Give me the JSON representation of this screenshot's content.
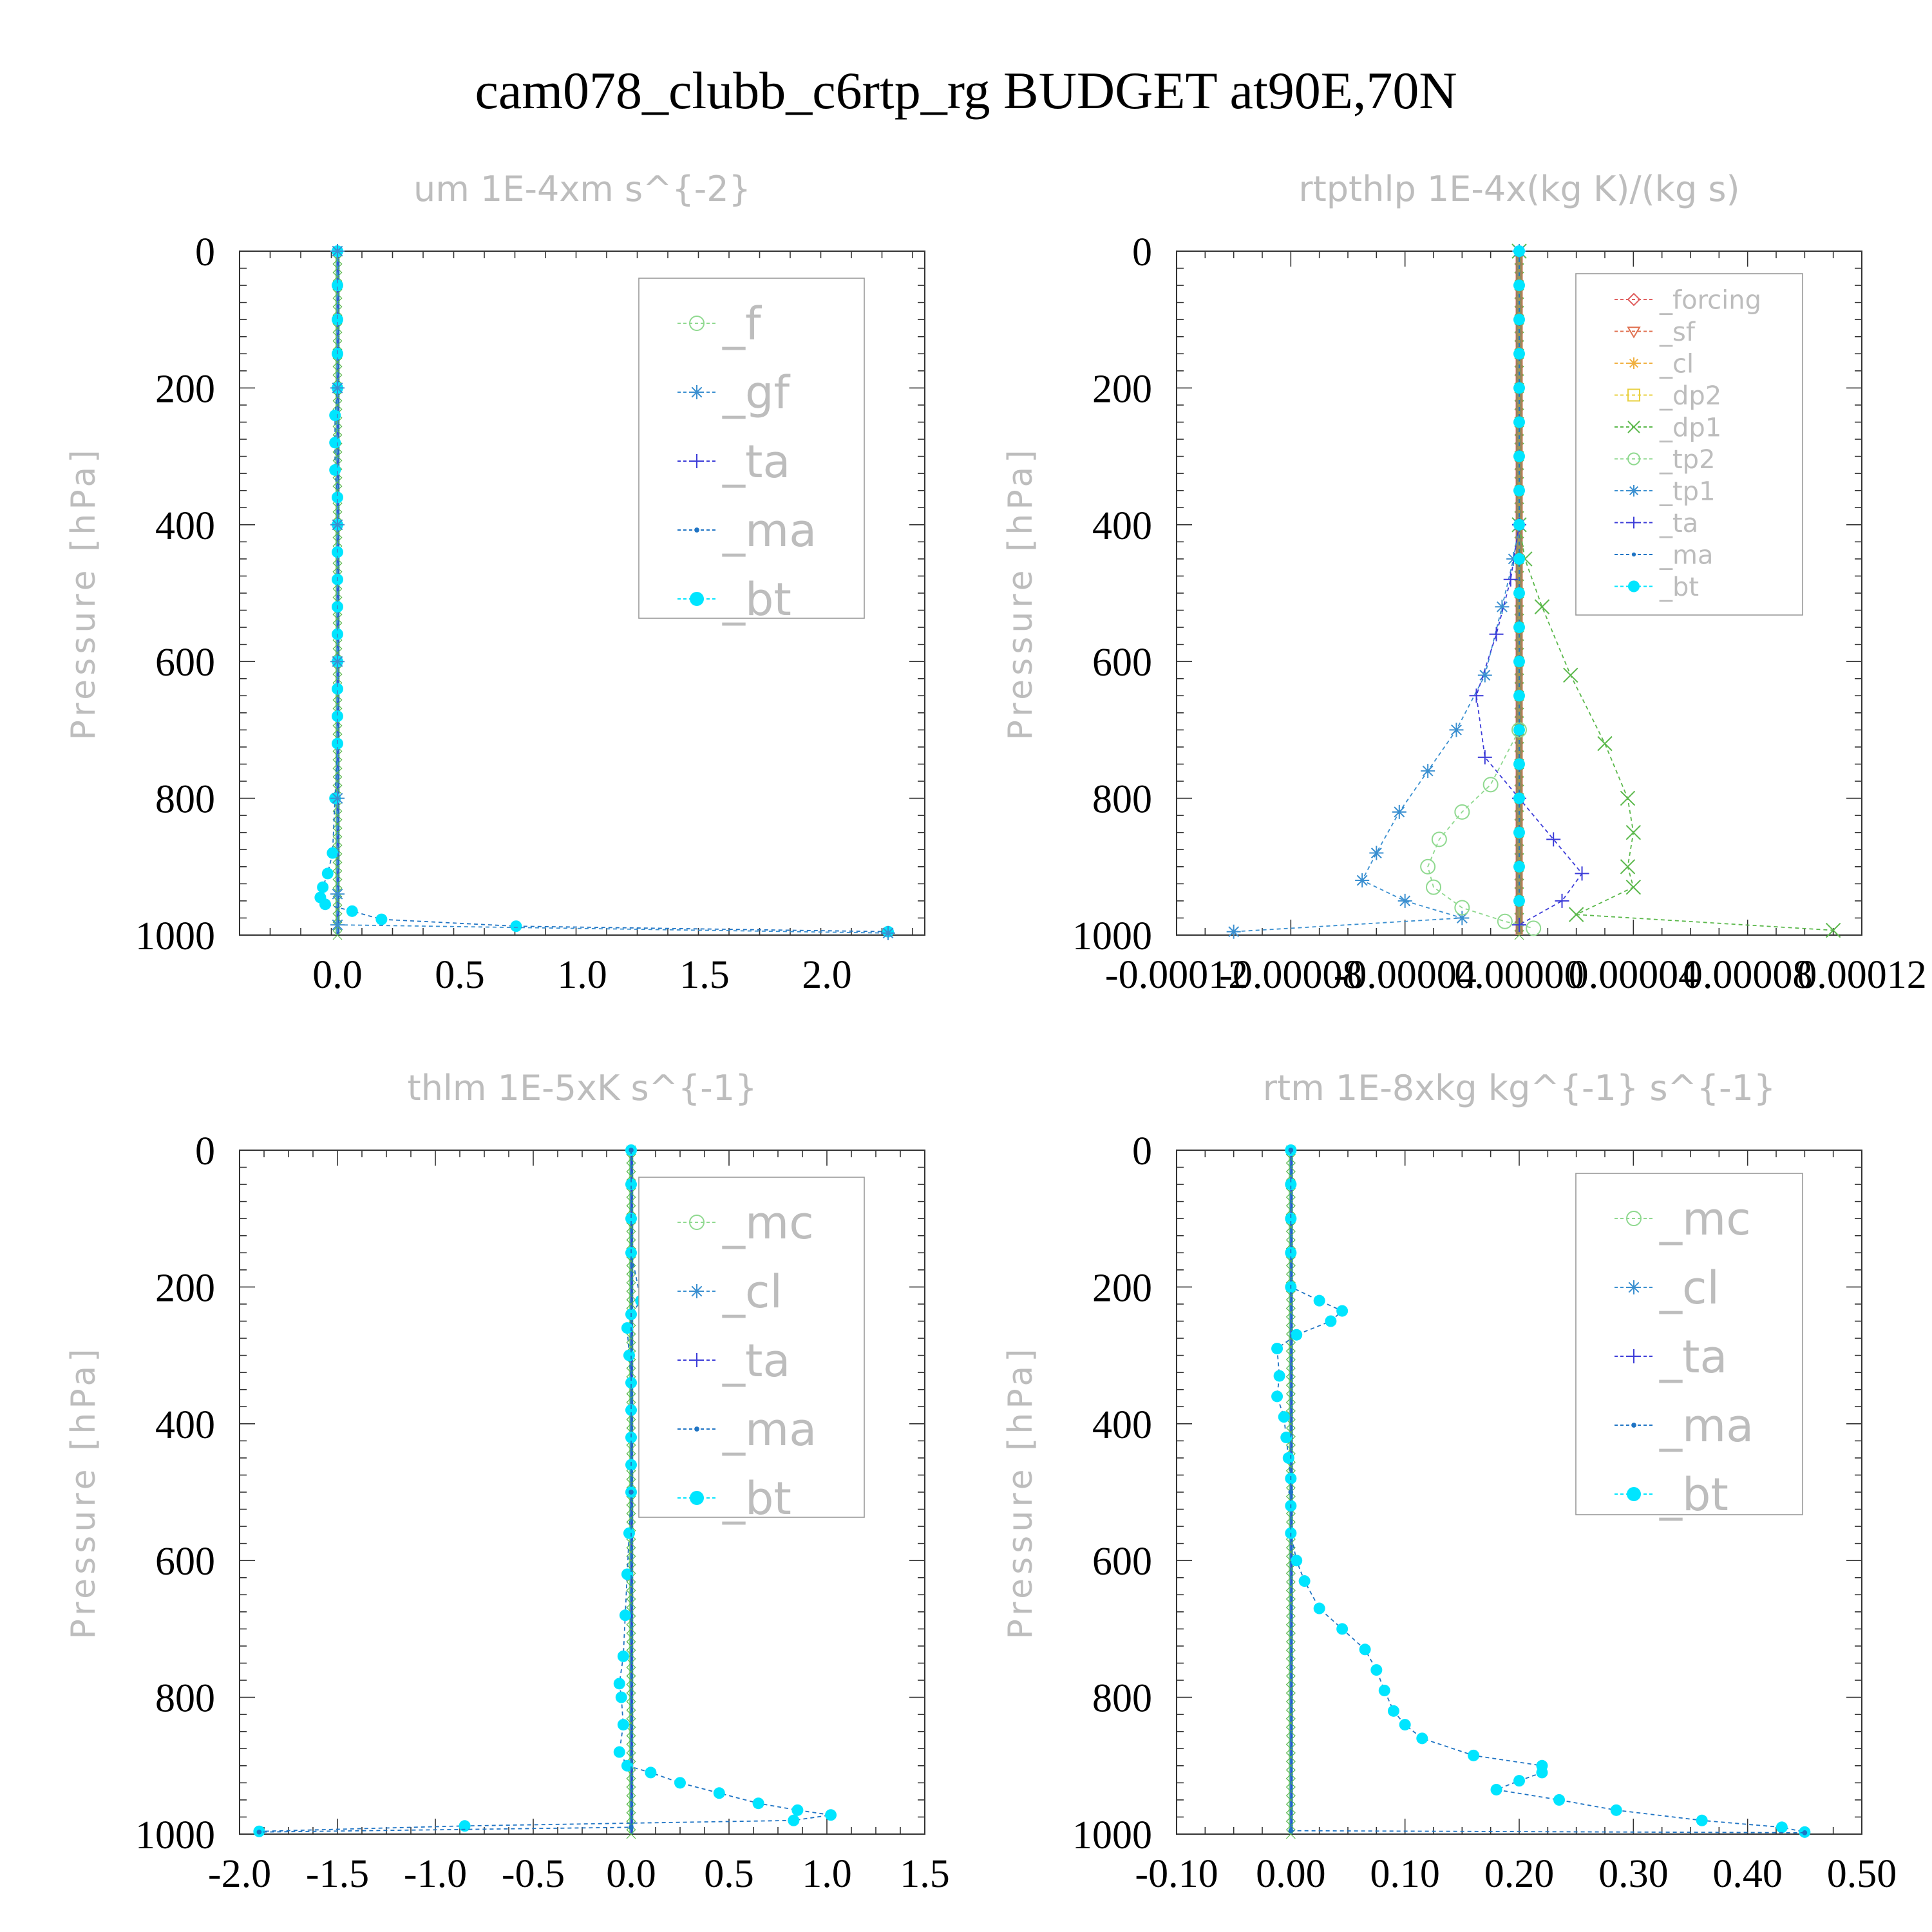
{
  "title": "cam078_clubb_c6rtp_rg  BUDGET at90E,70N",
  "ylabel": "Pressure [hPa]",
  "chart_data": [
    {
      "type": "line",
      "title": "um  1E-4xm s^{-2}",
      "ylabel": "Pressure [hPa]",
      "xlim": [
        -0.4,
        2.4
      ],
      "ylim": [
        1000,
        0
      ],
      "xticks": [
        "0.0",
        "0.5",
        "1.0",
        "1.5",
        "2.0"
      ],
      "xtick_values": [
        0,
        0.5,
        1.0,
        1.5,
        2.0
      ],
      "yticks": [
        "0",
        "200",
        "400",
        "600",
        "800",
        "1000"
      ],
      "legend": [
        "_f",
        "_gf",
        "_ta",
        "_ma",
        "_bt"
      ],
      "legend_colors": [
        "#8fd98f",
        "#3a8fd0",
        "#3b3bd8",
        "#1f74c4",
        "#00e5ff"
      ],
      "series": [
        {
          "name": "_bt",
          "marker": "dot",
          "x": [
            0,
            0,
            0,
            0,
            0,
            -0.01,
            -0.01,
            -0.01,
            0,
            0,
            0,
            0,
            0,
            0,
            0,
            0,
            0,
            0,
            -0.01,
            -0.02,
            -0.04,
            -0.06,
            -0.07,
            -0.05,
            0.06,
            0.18,
            0.73,
            2.25
          ],
          "y": [
            0,
            50,
            100,
            150,
            200,
            240,
            280,
            320,
            360,
            400,
            440,
            480,
            520,
            560,
            600,
            640,
            680,
            720,
            800,
            880,
            910,
            930,
            945,
            955,
            965,
            977,
            987,
            995
          ]
        },
        {
          "name": "_gf",
          "marker": "star",
          "x": [
            0,
            0,
            0,
            0,
            0,
            0.0,
            0.0,
            2.25
          ],
          "y": [
            0,
            200,
            400,
            600,
            800,
            940,
            985,
            997
          ]
        }
      ]
    },
    {
      "type": "line",
      "title": "rtpthlp  1E-4x(kg K)/(kg s)",
      "ylabel": "Pressure [hPa]",
      "xlim": [
        -0.00012,
        0.00012
      ],
      "ylim": [
        1000,
        0
      ],
      "xticks": [
        "-0.00012",
        "-0.00008",
        "-0.00004",
        "0.00000",
        "0.00004",
        "0.00008",
        "0.00012"
      ],
      "xtick_values": [
        -0.00012,
        -8e-05,
        -4e-05,
        0,
        4e-05,
        8e-05,
        0.00012
      ],
      "yticks": [
        "0",
        "200",
        "400",
        "600",
        "800",
        "1000"
      ],
      "legend": [
        "_forcing",
        "_sf",
        "_cl",
        "_dp2",
        "_dp1",
        "_tp2",
        "_tp1",
        "_ta",
        "_ma",
        "_bt"
      ],
      "legend_colors": [
        "#e06060",
        "#e07050",
        "#f0b040",
        "#e8d040",
        "#5ab84a",
        "#8fd98f",
        "#3a8fd0",
        "#3b3bd8",
        "#1f74c4",
        "#00e5ff"
      ],
      "series": [
        {
          "name": "_dp1",
          "marker": "x",
          "x": [
            0,
            0,
            2e-06,
            8e-06,
            1.8e-05,
            3e-05,
            3.8e-05,
            4e-05,
            3.8e-05,
            4e-05,
            2e-05,
            0.00011
          ],
          "y": [
            0,
            400,
            450,
            520,
            620,
            720,
            800,
            850,
            900,
            930,
            970,
            993
          ]
        },
        {
          "name": "_tp1",
          "marker": "star",
          "x": [
            0,
            0,
            -2e-06,
            -6e-06,
            -1.2e-05,
            -2.2e-05,
            -3.2e-05,
            -4.2e-05,
            -5e-05,
            -5.5e-05,
            -4e-05,
            -2e-05,
            -0.0001
          ],
          "y": [
            0,
            400,
            450,
            520,
            620,
            700,
            760,
            820,
            880,
            920,
            950,
            975,
            995
          ]
        },
        {
          "name": "_tp2",
          "marker": "circle",
          "x": [
            0,
            -1e-05,
            -2e-05,
            -2.8e-05,
            -3.2e-05,
            -3e-05,
            -2e-05,
            -5e-06,
            5e-06
          ],
          "y": [
            700,
            780,
            820,
            860,
            900,
            930,
            960,
            980,
            990
          ]
        },
        {
          "name": "_ta",
          "marker": "plus",
          "x": [
            0,
            -3e-06,
            -8e-06,
            -1.5e-05,
            -1.2e-05,
            0,
            1.2e-05,
            2.2e-05,
            1.5e-05,
            0
          ],
          "y": [
            400,
            480,
            560,
            650,
            740,
            800,
            860,
            910,
            950,
            985
          ]
        },
        {
          "name": "_bt",
          "marker": "dot",
          "x": [
            0,
            0,
            0,
            0,
            0,
            0,
            0,
            0,
            0,
            0,
            0,
            0,
            0,
            0,
            0,
            0,
            0,
            0,
            0,
            0
          ],
          "y": [
            0,
            50,
            100,
            150,
            200,
            250,
            300,
            350,
            400,
            450,
            500,
            550,
            600,
            650,
            700,
            750,
            800,
            850,
            900,
            950
          ]
        }
      ]
    },
    {
      "type": "line",
      "title": "thlm  1E-5xK s^{-1}",
      "ylabel": "Pressure [hPa]",
      "xlim": [
        -2.0,
        1.5
      ],
      "ylim": [
        1000,
        0
      ],
      "xticks": [
        "-2.0",
        "-1.5",
        "-1.0",
        "-0.5",
        "0.0",
        "0.5",
        "1.0",
        "1.5"
      ],
      "xtick_values": [
        -2.0,
        -1.5,
        -1.0,
        -0.5,
        0.0,
        0.5,
        1.0,
        1.5
      ],
      "yticks": [
        "0",
        "200",
        "400",
        "600",
        "800",
        "1000"
      ],
      "legend": [
        "_mc",
        "_cl",
        "_ta",
        "_ma",
        "_bt"
      ],
      "legend_colors": [
        "#8fd98f",
        "#3a8fd0",
        "#3b3bd8",
        "#1f74c4",
        "#00e5ff"
      ],
      "series": [
        {
          "name": "_bt",
          "marker": "dot",
          "x": [
            0,
            0,
            0,
            0,
            0.05,
            0,
            -0.02,
            -0.01,
            0,
            0,
            0,
            0,
            0,
            -0.01,
            -0.02,
            -0.03,
            -0.04,
            -0.06,
            -0.05,
            -0.04,
            -0.06,
            -0.02,
            0.1,
            0.25,
            0.45,
            0.65,
            0.85,
            1.02,
            0.83,
            -0.85,
            -1.9
          ],
          "y": [
            0,
            50,
            100,
            150,
            220,
            240,
            260,
            300,
            340,
            380,
            420,
            460,
            500,
            560,
            620,
            680,
            740,
            780,
            800,
            840,
            880,
            900,
            910,
            925,
            940,
            955,
            965,
            972,
            980,
            988,
            996
          ]
        },
        {
          "name": "_ma",
          "marker": "small",
          "x": [
            0,
            0,
            0,
            -1.9
          ],
          "y": [
            0,
            500,
            990,
            997
          ]
        }
      ]
    },
    {
      "type": "line",
      "title": "rtm  1E-8xkg kg^{-1} s^{-1}",
      "ylabel": "Pressure [hPa]",
      "xlim": [
        -0.1,
        0.5
      ],
      "ylim": [
        1000,
        0
      ],
      "xticks": [
        "-0.10",
        "0.00",
        "0.10",
        "0.20",
        "0.30",
        "0.40",
        "0.50"
      ],
      "xtick_values": [
        -0.1,
        0.0,
        0.1,
        0.2,
        0.3,
        0.4,
        0.5
      ],
      "yticks": [
        "0",
        "200",
        "400",
        "600",
        "800",
        "1000"
      ],
      "legend": [
        "_mc",
        "_cl",
        "_ta",
        "_ma",
        "_bt"
      ],
      "legend_colors": [
        "#8fd98f",
        "#3a8fd0",
        "#3b3bd8",
        "#1f74c4",
        "#00e5ff"
      ],
      "series": [
        {
          "name": "_bt",
          "marker": "dot",
          "x": [
            0,
            0,
            0,
            0,
            0.0,
            0.025,
            0.045,
            0.035,
            0.005,
            -0.012,
            -0.01,
            -0.012,
            -0.006,
            -0.004,
            -0.002,
            0,
            0,
            0,
            0.005,
            0.012,
            0.025,
            0.045,
            0.065,
            0.075,
            0.082,
            0.09,
            0.1,
            0.115,
            0.16,
            0.22,
            0.22,
            0.2,
            0.18,
            0.235,
            0.285,
            0.36,
            0.43,
            0.45
          ],
          "y": [
            0,
            50,
            100,
            150,
            200,
            220,
            235,
            250,
            270,
            290,
            330,
            360,
            390,
            420,
            450,
            480,
            520,
            560,
            600,
            630,
            670,
            700,
            730,
            760,
            790,
            820,
            840,
            860,
            885,
            900,
            910,
            922,
            935,
            950,
            965,
            980,
            990,
            997
          ]
        },
        {
          "name": "_ma",
          "marker": "small",
          "x": [
            0,
            0,
            0,
            0.45
          ],
          "y": [
            0,
            500,
            995,
            998
          ]
        }
      ]
    }
  ]
}
